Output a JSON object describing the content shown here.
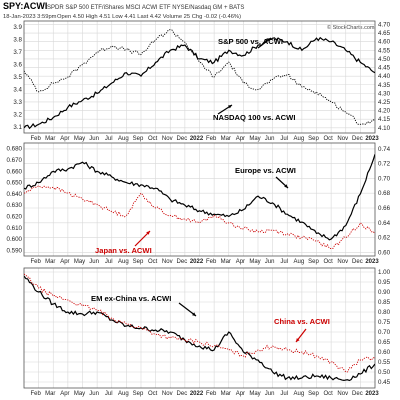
{
  "header": {
    "symbol": "SPY:ACWI",
    "description": "SPDR S&P 500 ETF/iShares MSCI ACWI ETF NYSE/Nasdaq GM + BATS",
    "date_line": "18-Jan-2023 3:59pm",
    "quote": "Open 4.50  High 4.51  Low 4.41  Last 4.42  Volume 25  Chg -0.02 (-0.46%)",
    "watermark": "© StockCharts.com"
  },
  "colors": {
    "black_series": "#000000",
    "red_series": "#cc0000",
    "grid": "#d8d8d8",
    "frame": "#555555"
  },
  "months": [
    "Feb",
    "Mar",
    "Apr",
    "May",
    "Jun",
    "Jul",
    "Aug",
    "Sep",
    "Oct",
    "Nov",
    "Dec",
    "2022",
    "Feb",
    "Mar",
    "Apr",
    "May",
    "Jun",
    "Jul",
    "Aug",
    "Sep",
    "Oct",
    "Nov",
    "Dec",
    "2023"
  ],
  "chart_data": [
    {
      "type": "line",
      "title": "SPY:ACWI",
      "x": [
        "2021-01",
        "2021-02",
        "2021-03",
        "2021-04",
        "2021-05",
        "2021-06",
        "2021-07",
        "2021-08",
        "2021-09",
        "2021-10",
        "2021-11",
        "2021-12",
        "2022-01",
        "2022-02",
        "2022-03",
        "2022-04",
        "2022-05",
        "2022-06",
        "2022-07",
        "2022-08",
        "2022-09",
        "2022-10",
        "2022-11",
        "2022-12",
        "2023-01"
      ],
      "left_axis": {
        "ticks": [
          "3.9",
          "3.8",
          "3.7",
          "3.6",
          "3.5",
          "3.4",
          "3.3",
          "3.2",
          "3.1"
        ],
        "ylim": [
          3.05,
          3.95
        ]
      },
      "right_axis": {
        "ticks": [
          "4.70",
          "4.65",
          "4.60",
          "4.55",
          "4.50",
          "4.45",
          "4.40",
          "4.35",
          "4.30",
          "4.25",
          "4.20",
          "4.15",
          "4.10"
        ],
        "ylim": [
          4.07,
          4.72
        ]
      },
      "series": [
        {
          "name": "S&P 500 vs. ACWI",
          "axis": "right",
          "style": "solid",
          "values": [
            4.1,
            4.12,
            4.16,
            4.22,
            4.26,
            4.3,
            4.36,
            4.42,
            4.4,
            4.48,
            4.55,
            4.58,
            4.5,
            4.48,
            4.55,
            4.52,
            4.58,
            4.62,
            4.6,
            4.55,
            4.62,
            4.6,
            4.55,
            4.48,
            4.42
          ]
        },
        {
          "name": "NASDAQ 100 vs. ACWI",
          "axis": "left",
          "style": "dotted",
          "values": [
            3.55,
            3.38,
            3.45,
            3.5,
            3.6,
            3.7,
            3.75,
            3.72,
            3.68,
            3.8,
            3.88,
            3.78,
            3.62,
            3.5,
            3.62,
            3.45,
            3.4,
            3.48,
            3.52,
            3.42,
            3.38,
            3.3,
            3.22,
            3.12,
            3.15
          ]
        }
      ],
      "annotations": [
        "S&P 500 vs. ACWI",
        "NASDAQ 100 vs. ACWI"
      ]
    },
    {
      "type": "line",
      "x": [
        "2021-01",
        "2021-02",
        "2021-03",
        "2021-04",
        "2021-05",
        "2021-06",
        "2021-07",
        "2021-08",
        "2021-09",
        "2021-10",
        "2021-11",
        "2021-12",
        "2022-01",
        "2022-02",
        "2022-03",
        "2022-04",
        "2022-05",
        "2022-06",
        "2022-07",
        "2022-08",
        "2022-09",
        "2022-10",
        "2022-11",
        "2022-12",
        "2023-01"
      ],
      "left_axis": {
        "ticks": [
          "0.680",
          "0.670",
          "0.660",
          "0.650",
          "0.640",
          "0.630",
          "0.620",
          "0.610",
          "0.600",
          "0.590"
        ],
        "ylim": [
          0.585,
          0.685
        ]
      },
      "right_axis": {
        "ticks": [
          "0.74",
          "0.72",
          "0.70",
          "0.68",
          "0.66",
          "0.64",
          "0.62",
          "0.60"
        ],
        "ylim": [
          0.595,
          0.748
        ]
      },
      "series": [
        {
          "name": "Europe vs. ACWI",
          "axis": "left",
          "style": "solid",
          "values": [
            0.645,
            0.65,
            0.66,
            0.662,
            0.668,
            0.66,
            0.655,
            0.65,
            0.648,
            0.645,
            0.635,
            0.63,
            0.625,
            0.622,
            0.62,
            0.626,
            0.638,
            0.632,
            0.622,
            0.615,
            0.605,
            0.6,
            0.612,
            0.64,
            0.675
          ]
        },
        {
          "name": "Japan vs. ACWI",
          "axis": "right",
          "style": "dotted",
          "values": [
            0.68,
            0.69,
            0.688,
            0.68,
            0.672,
            0.665,
            0.655,
            0.65,
            0.68,
            0.66,
            0.65,
            0.645,
            0.64,
            0.65,
            0.64,
            0.632,
            0.628,
            0.63,
            0.625,
            0.62,
            0.615,
            0.605,
            0.62,
            0.64,
            0.625
          ]
        }
      ],
      "annotations": [
        "Europe vs. ACWI",
        "Japan vs. ACWI"
      ]
    },
    {
      "type": "line",
      "x": [
        "2021-01",
        "2021-02",
        "2021-03",
        "2021-04",
        "2021-05",
        "2021-06",
        "2021-07",
        "2021-08",
        "2021-09",
        "2021-10",
        "2021-11",
        "2021-12",
        "2022-01",
        "2022-02",
        "2022-03",
        "2022-04",
        "2022-05",
        "2022-06",
        "2022-07",
        "2022-08",
        "2022-09",
        "2022-10",
        "2022-11",
        "2022-12",
        "2023-01"
      ],
      "right_axis": {
        "ticks": [
          "1.00",
          "0.95",
          "0.90",
          "0.85",
          "0.80",
          "0.75",
          "0.70",
          "0.65",
          "0.60",
          "0.55",
          "0.50",
          "0.45"
        ],
        "ylim": [
          0.42,
          1.02
        ]
      },
      "series": [
        {
          "name": "EM ex-China vs. ACWI",
          "axis": "right",
          "style": "solid",
          "values": [
            0.98,
            0.9,
            0.84,
            0.8,
            0.79,
            0.8,
            0.76,
            0.73,
            0.72,
            0.71,
            0.7,
            0.66,
            0.63,
            0.61,
            0.7,
            0.6,
            0.56,
            0.5,
            0.47,
            0.47,
            0.48,
            0.47,
            0.46,
            0.49,
            0.54
          ]
        },
        {
          "name": "China vs. ACWI",
          "axis": "right",
          "style": "dotted",
          "values": [
            0.99,
            0.92,
            0.88,
            0.86,
            0.83,
            0.81,
            0.77,
            0.74,
            0.72,
            0.69,
            0.67,
            0.66,
            0.65,
            0.63,
            0.61,
            0.58,
            0.61,
            0.63,
            0.61,
            0.6,
            0.58,
            0.55,
            0.5,
            0.56,
            0.57
          ]
        }
      ],
      "annotations": [
        "EM ex-China vs. ACWI",
        "China vs. ACWI"
      ]
    }
  ]
}
